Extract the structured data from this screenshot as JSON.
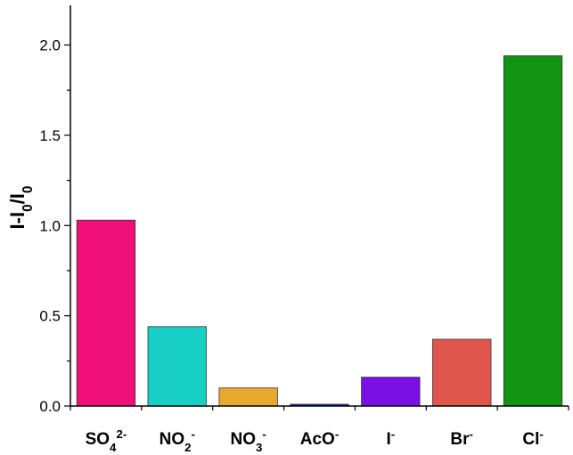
{
  "chart_data": {
    "type": "bar",
    "title": "",
    "xlabel": "",
    "ylabel": {
      "parts": [
        {
          "text": "I-I",
          "shift": ""
        },
        {
          "text": "0",
          "shift": "sub"
        },
        {
          "text": "/I",
          "shift": ""
        },
        {
          "text": "0",
          "shift": "sub"
        }
      ]
    },
    "ylim": [
      0,
      2.2
    ],
    "yticks": [
      "0.0",
      "0.5",
      "1.0",
      "1.5",
      "2.0"
    ],
    "grid": false,
    "legend": "none",
    "categories": [
      {
        "parts": [
          {
            "text": "SO",
            "shift": ""
          },
          {
            "text": "4",
            "shift": "sub"
          },
          {
            "text": "2-",
            "shift": "sup"
          }
        ]
      },
      {
        "parts": [
          {
            "text": "NO",
            "shift": ""
          },
          {
            "text": "2",
            "shift": "sub"
          },
          {
            "text": "-",
            "shift": "sup"
          }
        ]
      },
      {
        "parts": [
          {
            "text": "NO",
            "shift": ""
          },
          {
            "text": "3",
            "shift": "sub"
          },
          {
            "text": "-",
            "shift": "sup"
          }
        ]
      },
      {
        "parts": [
          {
            "text": "AcO",
            "shift": ""
          },
          {
            "text": "-",
            "shift": "sup"
          }
        ]
      },
      {
        "parts": [
          {
            "text": "I",
            "shift": ""
          },
          {
            "text": "-",
            "shift": "sup"
          }
        ]
      },
      {
        "parts": [
          {
            "text": "Br",
            "shift": ""
          },
          {
            "text": "-",
            "shift": "sup"
          }
        ]
      },
      {
        "parts": [
          {
            "text": "Cl",
            "shift": ""
          },
          {
            "text": "-",
            "shift": "sup"
          }
        ]
      }
    ],
    "values": [
      1.03,
      0.44,
      0.1,
      0.01,
      0.16,
      0.37,
      1.94
    ],
    "colors": [
      "#ee0f78",
      "#18cfc5",
      "#e8a82e",
      "#1b2fb3",
      "#7a10e6",
      "#e0564c",
      "#119411"
    ]
  }
}
